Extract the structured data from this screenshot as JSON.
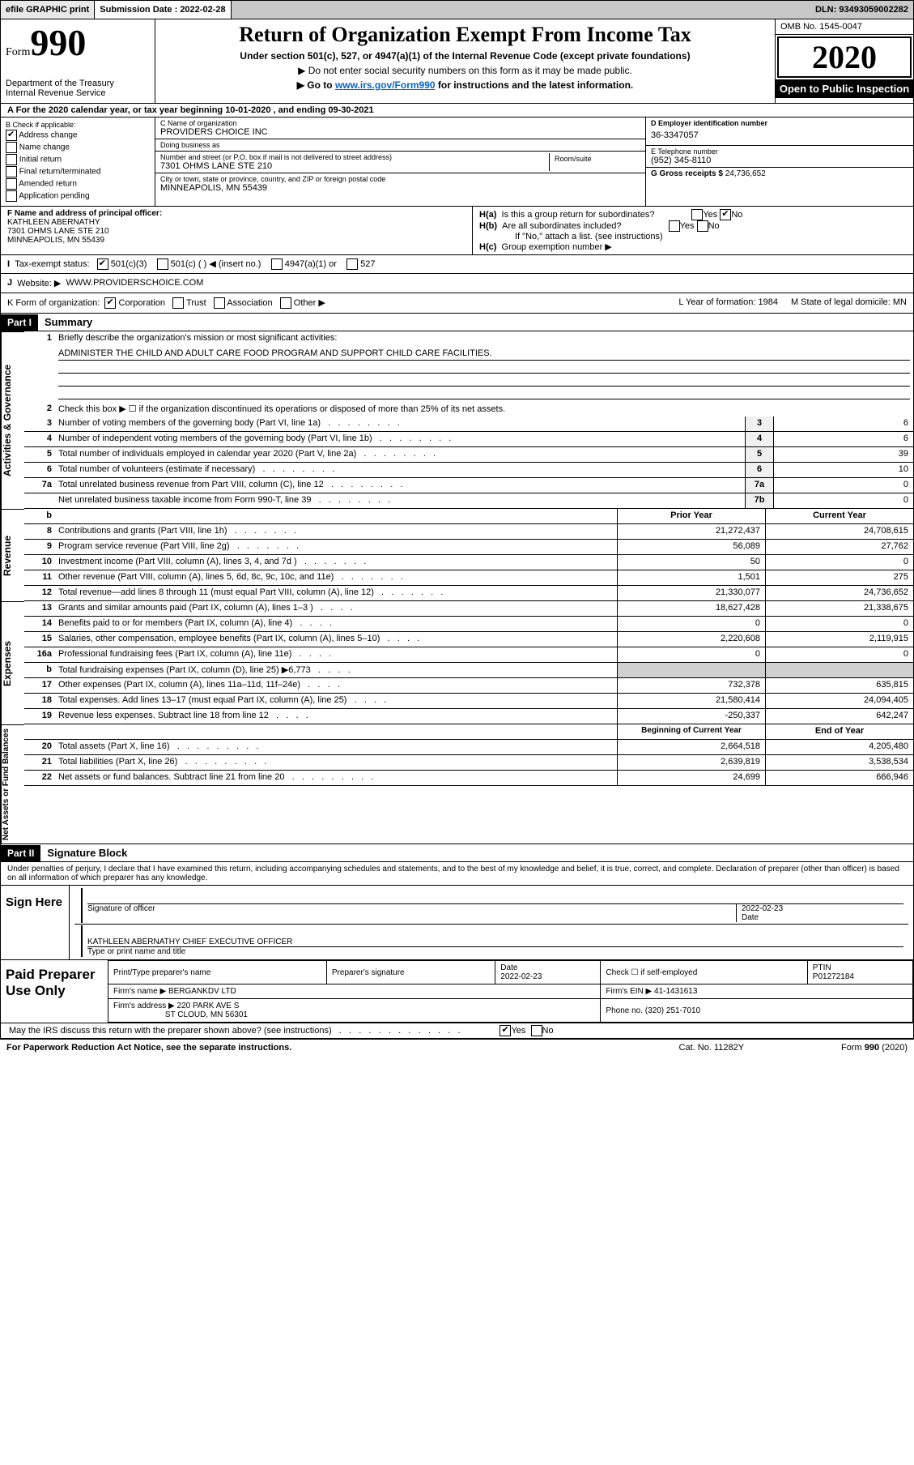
{
  "topbar": {
    "efile": "efile GRAPHIC print",
    "sub_lbl": "Submission Date : 2022-02-28",
    "dln": "DLN: 93493059002282"
  },
  "header": {
    "form_lbl": "Form",
    "form_num": "990",
    "dept": "Department of the Treasury\nInternal Revenue Service",
    "title": "Return of Organization Exempt From Income Tax",
    "sub1": "Under section 501(c), 527, or 4947(a)(1) of the Internal Revenue Code (except private foundations)",
    "sub2": "▶ Do not enter social security numbers on this form as it may be made public.",
    "sub3_pre": "▶ Go to ",
    "sub3_link": "www.irs.gov/Form990",
    "sub3_post": " for instructions and the latest information.",
    "omb": "OMB No. 1545-0047",
    "year": "2020",
    "insp": "Open to Public Inspection"
  },
  "rowA": "A For the 2020 calendar year, or tax year beginning 10-01-2020     , and ending 09-30-2021",
  "boxB": {
    "hdr": "B Check if applicable:",
    "items": [
      "Address change",
      "Name change",
      "Initial return",
      "Final return/terminated",
      "Amended return",
      "Application pending"
    ],
    "checked": [
      true,
      false,
      false,
      false,
      false,
      false
    ]
  },
  "boxC": {
    "name_lbl": "C Name of organization",
    "name": "PROVIDERS CHOICE INC",
    "dba_lbl": "Doing business as",
    "dba": "",
    "addr_lbl": "Number and street (or P.O. box if mail is not delivered to street address)",
    "room_lbl": "Room/suite",
    "addr": "7301 OHMS LANE STE 210",
    "city_lbl": "City or town, state or province, country, and ZIP or foreign postal code",
    "city": "MINNEAPOLIS, MN  55439"
  },
  "boxD": {
    "lbl": "D Employer identification number",
    "val": "36-3347057"
  },
  "boxE": {
    "lbl": "E Telephone number",
    "val": "(952) 345-8110"
  },
  "boxG": {
    "lbl": "G Gross receipts $",
    "val": "24,736,652"
  },
  "boxF": {
    "lbl": "F  Name and address of principal officer:",
    "name": "KATHLEEN ABERNATHY",
    "addr1": "7301 OHMS LANE STE 210",
    "addr2": "MINNEAPOLIS, MN  55439"
  },
  "boxH": {
    "ha": "H(a)",
    "ha_txt": "Is this a group return for subordinates?",
    "ha_ans": "No",
    "hb": "H(b)",
    "hb_txt": "Are all subordinates included?",
    "hb_note": "If \"No,\" attach a list. (see instructions)",
    "hc": "H(c)",
    "hc_txt": "Group exemption number ▶"
  },
  "rowI": {
    "lbl": "I",
    "txt": "Tax-exempt status:",
    "opts": [
      "501(c)(3)",
      "501(c) (   ) ◀ (insert no.)",
      "4947(a)(1) or",
      "527"
    ],
    "checked": 0
  },
  "rowJ": {
    "lbl": "J",
    "txt": "Website: ▶",
    "val": "WWW.PROVIDERSCHOICE.COM"
  },
  "rowK": {
    "lbl": "K Form of organization:",
    "opts": [
      "Corporation",
      "Trust",
      "Association",
      "Other ▶"
    ],
    "checked": 0,
    "L": "L Year of formation: 1984",
    "M": "M State of legal domicile: MN"
  },
  "part1": {
    "num": "Part I",
    "title": "Summary"
  },
  "gov": {
    "tab": "Activities & Governance",
    "l1": "Briefly describe the organization's mission or most significant activities:",
    "l1v": "ADMINISTER THE CHILD AND ADULT CARE FOOD PROGRAM AND SUPPORT CHILD CARE FACILITIES.",
    "l2": "Check this box ▶ ☐  if the organization discontinued its operations or disposed of more than 25% of its net assets.",
    "rows": [
      {
        "n": "3",
        "t": "Number of voting members of the governing body (Part VI, line 1a)",
        "b": "3",
        "v": "6"
      },
      {
        "n": "4",
        "t": "Number of independent voting members of the governing body (Part VI, line 1b)",
        "b": "4",
        "v": "6"
      },
      {
        "n": "5",
        "t": "Total number of individuals employed in calendar year 2020 (Part V, line 2a)",
        "b": "5",
        "v": "39"
      },
      {
        "n": "6",
        "t": "Total number of volunteers (estimate if necessary)",
        "b": "6",
        "v": "10"
      },
      {
        "n": "7a",
        "t": "Total unrelated business revenue from Part VIII, column (C), line 12",
        "b": "7a",
        "v": "0"
      },
      {
        "n": "",
        "t": "Net unrelated business taxable income from Form 990-T, line 39",
        "b": "7b",
        "v": "0"
      }
    ]
  },
  "rev": {
    "tab": "Revenue",
    "hdr_py": "Prior Year",
    "hdr_cy": "Current Year",
    "rows": [
      {
        "n": "8",
        "t": "Contributions and grants (Part VIII, line 1h)",
        "p": "21,272,437",
        "c": "24,708,615"
      },
      {
        "n": "9",
        "t": "Program service revenue (Part VIII, line 2g)",
        "p": "56,089",
        "c": "27,762"
      },
      {
        "n": "10",
        "t": "Investment income (Part VIII, column (A), lines 3, 4, and 7d )",
        "p": "50",
        "c": "0"
      },
      {
        "n": "11",
        "t": "Other revenue (Part VIII, column (A), lines 5, 6d, 8c, 9c, 10c, and 11e)",
        "p": "1,501",
        "c": "275"
      },
      {
        "n": "12",
        "t": "Total revenue—add lines 8 through 11 (must equal Part VIII, column (A), line 12)",
        "p": "21,330,077",
        "c": "24,736,652"
      }
    ]
  },
  "exp": {
    "tab": "Expenses",
    "rows": [
      {
        "n": "13",
        "t": "Grants and similar amounts paid (Part IX, column (A), lines 1–3 )",
        "p": "18,627,428",
        "c": "21,338,675"
      },
      {
        "n": "14",
        "t": "Benefits paid to or for members (Part IX, column (A), line 4)",
        "p": "0",
        "c": "0"
      },
      {
        "n": "15",
        "t": "Salaries, other compensation, employee benefits (Part IX, column (A), lines 5–10)",
        "p": "2,220,608",
        "c": "2,119,915"
      },
      {
        "n": "16a",
        "t": "Professional fundraising fees (Part IX, column (A), line 11e)",
        "p": "0",
        "c": "0"
      },
      {
        "n": "b",
        "t": "Total fundraising expenses (Part IX, column (D), line 25) ▶6,773",
        "p": "",
        "c": "",
        "shade": true
      },
      {
        "n": "17",
        "t": "Other expenses (Part IX, column (A), lines 11a–11d, 11f–24e)",
        "p": "732,378",
        "c": "635,815"
      },
      {
        "n": "18",
        "t": "Total expenses. Add lines 13–17 (must equal Part IX, column (A), line 25)",
        "p": "21,580,414",
        "c": "24,094,405"
      },
      {
        "n": "19",
        "t": "Revenue less expenses. Subtract line 18 from line 12",
        "p": "-250,337",
        "c": "642,247"
      }
    ]
  },
  "net": {
    "tab": "Net Assets or Fund Balances",
    "hdr_b": "Beginning of Current Year",
    "hdr_e": "End of Year",
    "rows": [
      {
        "n": "20",
        "t": "Total assets (Part X, line 16)",
        "p": "2,664,518",
        "c": "4,205,480"
      },
      {
        "n": "21",
        "t": "Total liabilities (Part X, line 26)",
        "p": "2,639,819",
        "c": "3,538,534"
      },
      {
        "n": "22",
        "t": "Net assets or fund balances. Subtract line 21 from line 20",
        "p": "24,699",
        "c": "666,946"
      }
    ]
  },
  "part2": {
    "num": "Part II",
    "title": "Signature Block"
  },
  "declare": "Under penalties of perjury, I declare that I have examined this return, including accompanying schedules and statements, and to the best of my knowledge and belief, it is true, correct, and complete. Declaration of preparer (other than officer) is based on all information of which preparer has any knowledge.",
  "sign": {
    "lbl": "Sign Here",
    "sig_lbl": "Signature of officer",
    "date_lbl": "Date",
    "date": "2022-02-23",
    "name": "KATHLEEN ABERNATHY CHIEF EXECUTIVE OFFICER",
    "name_lbl": "Type or print name and title"
  },
  "paid": {
    "lbl": "Paid Preparer Use Only",
    "h": [
      "Print/Type preparer's name",
      "Preparer's signature",
      "Date",
      "",
      "PTIN"
    ],
    "date": "2022-02-23",
    "chk": "Check ☐ if self-employed",
    "ptin": "P01272184",
    "firm_lbl": "Firm's name    ▶",
    "firm": "BERGANKDV LTD",
    "ein_lbl": "Firm's EIN ▶",
    "ein": "41-1431613",
    "addr_lbl": "Firm's address ▶",
    "addr1": "220 PARK AVE S",
    "addr2": "ST CLOUD, MN  56301",
    "ph_lbl": "Phone no.",
    "ph": "(320) 251-7010"
  },
  "discuss": "May the IRS discuss this return with the preparer shown above? (see instructions)",
  "foot": {
    "l": "For Paperwork Reduction Act Notice, see the separate instructions.",
    "m": "Cat. No. 11282Y",
    "r": "Form 990 (2020)"
  }
}
